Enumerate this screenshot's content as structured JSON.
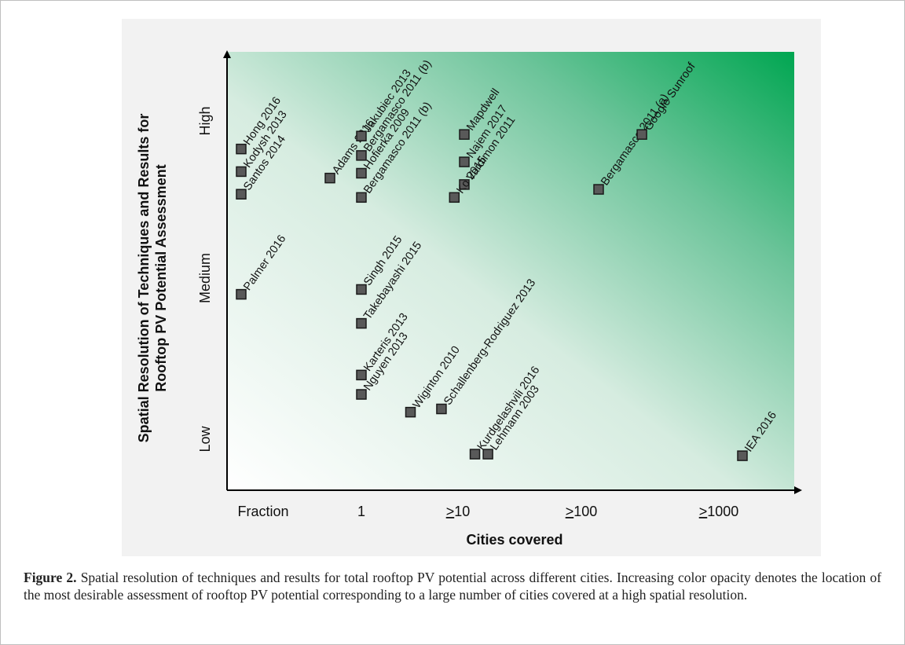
{
  "chart_data": {
    "type": "scatter",
    "xlabel": "Cities covered",
    "ylabel_line1": "Spatial Resolution of Techniques and Results for",
    "ylabel_line2": "Rooftop PV Potential Assessment",
    "x_categories": [
      "Fraction",
      "1",
      "≥10",
      "≥100",
      "≥1000"
    ],
    "y_categories": [
      "Low",
      "Medium",
      "High"
    ],
    "x_scale": "ordinal (log-like: Fraction, 1, ≥10, ≥100, ≥1000)",
    "y_scale": "ordinal (Low, Medium, High)",
    "background": "gradient from white (Fraction, Low) to green (#00a651) at (≥1000, High)",
    "marker_color": "#595959",
    "points": [
      {
        "label": "Hong 2016",
        "x": 0.01,
        "y": 2.88
      },
      {
        "label": "Kodysh 2013",
        "x": 0.01,
        "y": 2.74
      },
      {
        "label": "Santos 2014",
        "x": 0.01,
        "y": 2.6
      },
      {
        "label": "Adams 2016",
        "x": 0.3,
        "y": 2.7
      },
      {
        "label": "Palmer 2016",
        "x": 0.01,
        "y": 1.98
      },
      {
        "label": "Jakubiec 2013",
        "x": 1,
        "y": 2.96
      },
      {
        "label": "Bergamasco 2011 (b)",
        "x": 1,
        "y": 2.84
      },
      {
        "label": "Hofierka 2009",
        "x": 1,
        "y": 2.73
      },
      {
        "label": "Bergamasco 2011 (b)",
        "x": 1,
        "y": 2.58
      },
      {
        "label": "Singh 2015",
        "x": 1,
        "y": 2.01
      },
      {
        "label": "Takebayashi 2015",
        "x": 1,
        "y": 1.8
      },
      {
        "label": "Karteris 2013",
        "x": 1,
        "y": 1.48
      },
      {
        "label": "Nguyen 2013",
        "x": 1,
        "y": 1.36
      },
      {
        "label": "Wiginton 2010",
        "x": 3,
        "y": 1.25
      },
      {
        "label": "Schallenberg-Rodriguez 2013",
        "x": 6,
        "y": 1.27
      },
      {
        "label": "Mapdwell",
        "x": 10,
        "y": 2.97
      },
      {
        "label": "Najem 2017",
        "x": 10,
        "y": 2.8
      },
      {
        "label": "Vardimon 2011",
        "x": 10,
        "y": 2.66
      },
      {
        "label": "Ko 2015",
        "x": 8,
        "y": 2.58
      },
      {
        "label": "Kurdgelashvili 2016",
        "x": 12,
        "y": 0.99
      },
      {
        "label": "Lehmann 2003",
        "x": 15,
        "y": 0.99
      },
      {
        "label": "Bergamasco 2011 (a)",
        "x": 100,
        "y": 2.63
      },
      {
        "label": "Google Sunroof",
        "x": 200,
        "y": 2.97
      },
      {
        "label": "IEA 2016",
        "x": 1000,
        "y": 0.98
      }
    ]
  },
  "caption": {
    "label": "Figure 2.",
    "text": "Spatial resolution of techniques and results for total rooftop PV potential across different cities. Increasing color opacity denotes the location of the most desirable assessment of rooftop PV potential corresponding to a large number of cities covered at a high spatial resolution."
  }
}
